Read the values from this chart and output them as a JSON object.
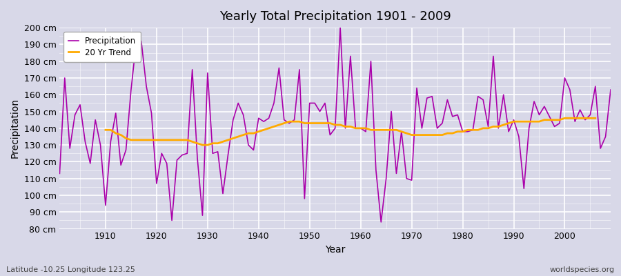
{
  "title": "Yearly Total Precipitation 1901 - 2009",
  "xlabel": "Year",
  "ylabel": "Precipitation",
  "bg_color": "#d8d8e8",
  "plot_bg_color": "#d8d8e8",
  "precip_color": "#aa00aa",
  "trend_color": "#ffaa00",
  "precip_label": "Precipitation",
  "trend_label": "20 Yr Trend",
  "footer_left": "Latitude -10.25 Longitude 123.25",
  "footer_right": "worldspecies.org",
  "ylim": [
    80,
    200
  ],
  "yticks": [
    80,
    90,
    100,
    110,
    120,
    130,
    140,
    150,
    160,
    170,
    180,
    190,
    200
  ],
  "xticks": [
    1910,
    1920,
    1930,
    1940,
    1950,
    1960,
    1970,
    1980,
    1990,
    2000
  ],
  "xlim": [
    1901,
    2009
  ],
  "years": [
    1901,
    1902,
    1903,
    1904,
    1905,
    1906,
    1907,
    1908,
    1909,
    1910,
    1911,
    1912,
    1913,
    1914,
    1915,
    1916,
    1917,
    1918,
    1919,
    1920,
    1921,
    1922,
    1923,
    1924,
    1925,
    1926,
    1927,
    1928,
    1929,
    1930,
    1931,
    1932,
    1933,
    1934,
    1935,
    1936,
    1937,
    1938,
    1939,
    1940,
    1941,
    1942,
    1943,
    1944,
    1945,
    1946,
    1947,
    1948,
    1949,
    1950,
    1951,
    1952,
    1953,
    1954,
    1955,
    1956,
    1957,
    1958,
    1959,
    1960,
    1961,
    1962,
    1963,
    1964,
    1965,
    1966,
    1967,
    1968,
    1969,
    1970,
    1971,
    1972,
    1973,
    1974,
    1975,
    1976,
    1977,
    1978,
    1979,
    1980,
    1981,
    1982,
    1983,
    1984,
    1985,
    1986,
    1987,
    1988,
    1989,
    1990,
    1991,
    1992,
    1993,
    1994,
    1995,
    1996,
    1997,
    1998,
    1999,
    2000,
    2001,
    2002,
    2003,
    2004,
    2005,
    2006,
    2007,
    2008,
    2009
  ],
  "precip": [
    113,
    170,
    128,
    148,
    154,
    132,
    119,
    145,
    130,
    94,
    132,
    149,
    118,
    127,
    163,
    191,
    192,
    165,
    149,
    107,
    125,
    119,
    85,
    121,
    124,
    125,
    175,
    122,
    88,
    173,
    125,
    126,
    101,
    124,
    145,
    155,
    148,
    130,
    127,
    146,
    144,
    146,
    155,
    176,
    145,
    143,
    145,
    175,
    98,
    155,
    155,
    150,
    155,
    136,
    140,
    200,
    140,
    183,
    140,
    140,
    138,
    180,
    115,
    84,
    110,
    150,
    113,
    138,
    110,
    109,
    164,
    140,
    158,
    159,
    140,
    143,
    157,
    147,
    148,
    138,
    138,
    139,
    159,
    157,
    141,
    183,
    140,
    160,
    138,
    145,
    135,
    104,
    140,
    156,
    148,
    153,
    147,
    141,
    143,
    170,
    163,
    144,
    151,
    145,
    148,
    165,
    128,
    135,
    163
  ],
  "trend": [
    null,
    null,
    null,
    null,
    null,
    null,
    null,
    null,
    null,
    139,
    139,
    137,
    136,
    134,
    133,
    133,
    133,
    133,
    133,
    133,
    133,
    133,
    133,
    133,
    133,
    133,
    132,
    131,
    130,
    130,
    131,
    131,
    132,
    133,
    134,
    135,
    136,
    137,
    137,
    138,
    139,
    140,
    141,
    142,
    143,
    144,
    144,
    144,
    143,
    143,
    143,
    143,
    143,
    143,
    142,
    142,
    141,
    141,
    140,
    140,
    140,
    139,
    139,
    139,
    139,
    139,
    139,
    138,
    137,
    136,
    136,
    136,
    136,
    136,
    136,
    136,
    137,
    137,
    138,
    138,
    139,
    139,
    139,
    140,
    140,
    141,
    141,
    142,
    143,
    144,
    144,
    144,
    144,
    144,
    144,
    145,
    145,
    145,
    145,
    146,
    146,
    146,
    146,
    146,
    146,
    146,
    null,
    null,
    null
  ]
}
